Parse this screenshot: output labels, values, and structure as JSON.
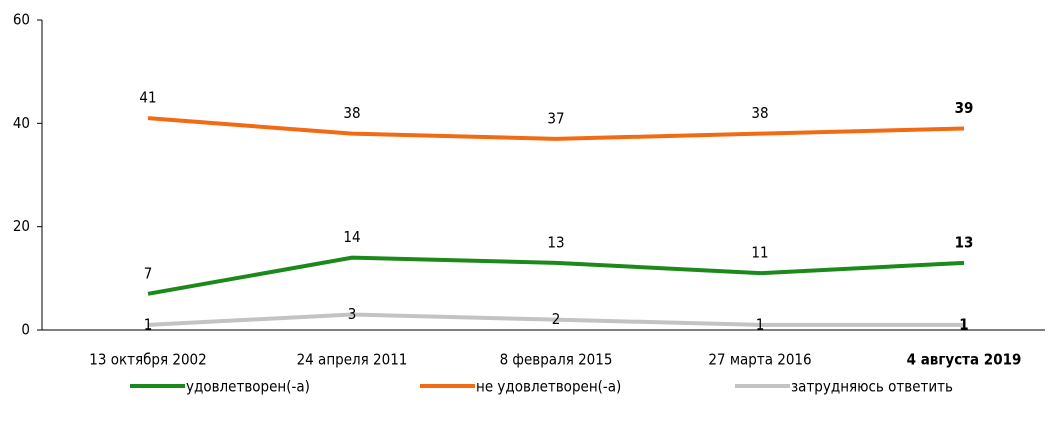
{
  "chart_data": {
    "type": "line",
    "categories": [
      "13 октября 2002",
      "24 апреля 2011",
      "8 февраля 2015",
      "27 марта 2016",
      "4 августа 2019"
    ],
    "series": [
      {
        "name": "удовлетворен(-а)",
        "color": "#1b8a1b",
        "values": [
          7,
          14,
          13,
          11,
          13
        ]
      },
      {
        "name": "не удовлетворен(-а)",
        "color": "#f26b12",
        "values": [
          41,
          38,
          37,
          38,
          39
        ]
      },
      {
        "name": "затрудняюсь ответить",
        "color": "#c3c3c3",
        "values": [
          1,
          3,
          2,
          1,
          1
        ]
      }
    ],
    "ylim": [
      0,
      60
    ],
    "yticks": [
      0,
      20,
      40,
      60
    ],
    "legend": "bottom"
  }
}
